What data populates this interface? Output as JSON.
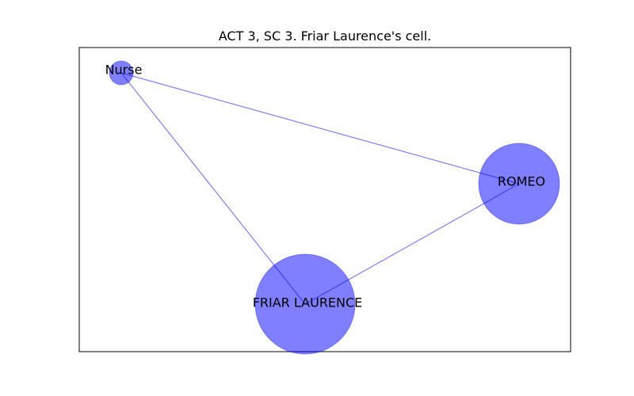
{
  "title": "ACT 3, SC 3. Friar Laurence's cell.",
  "colors": {
    "node_fill": "#0000ff",
    "edge_stroke": "#0000ff",
    "frame": "#000000"
  },
  "graph": {
    "nodes": [
      {
        "id": "nurse",
        "label": "Nurse",
        "weight": 1
      },
      {
        "id": "romeo",
        "label": "ROMEO",
        "weight": 5
      },
      {
        "id": "friar",
        "label": "FRIAR LAURENCE",
        "weight": 7
      }
    ],
    "edges": [
      {
        "source": "nurse",
        "target": "romeo"
      },
      {
        "source": "nurse",
        "target": "friar"
      },
      {
        "source": "friar",
        "target": "romeo"
      }
    ]
  }
}
